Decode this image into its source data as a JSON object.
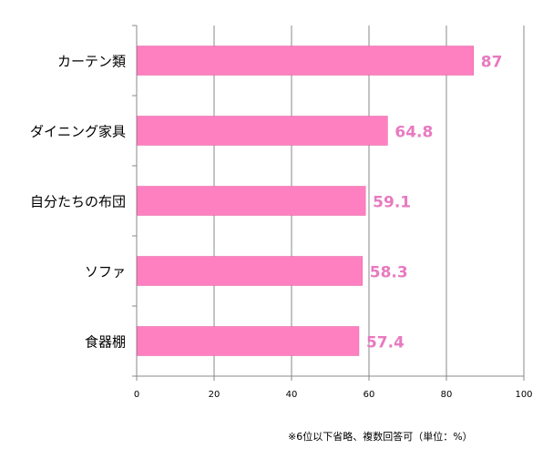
{
  "chart_data": {
    "type": "bar",
    "orientation": "horizontal",
    "categories": [
      "カーテン類",
      "ダイニング家具",
      "自分たちの布団",
      "ソファ",
      "食器棚"
    ],
    "values": [
      87,
      64.8,
      59.1,
      58.3,
      57.4
    ],
    "value_labels": [
      "87",
      "64.8",
      "59.1",
      "58.3",
      "57.4"
    ],
    "xlim": [
      0,
      100
    ],
    "x_ticks": [
      0,
      20,
      40,
      60,
      80,
      100
    ],
    "grid": "vertical",
    "title": "",
    "xlabel": "",
    "ylabel": "",
    "bar_color": "#ff80c0",
    "bar_edge_color": "#e060a0",
    "value_label_color": "#e87ac0"
  },
  "note": "※6位以下省略、複数回答可（単位：%）"
}
